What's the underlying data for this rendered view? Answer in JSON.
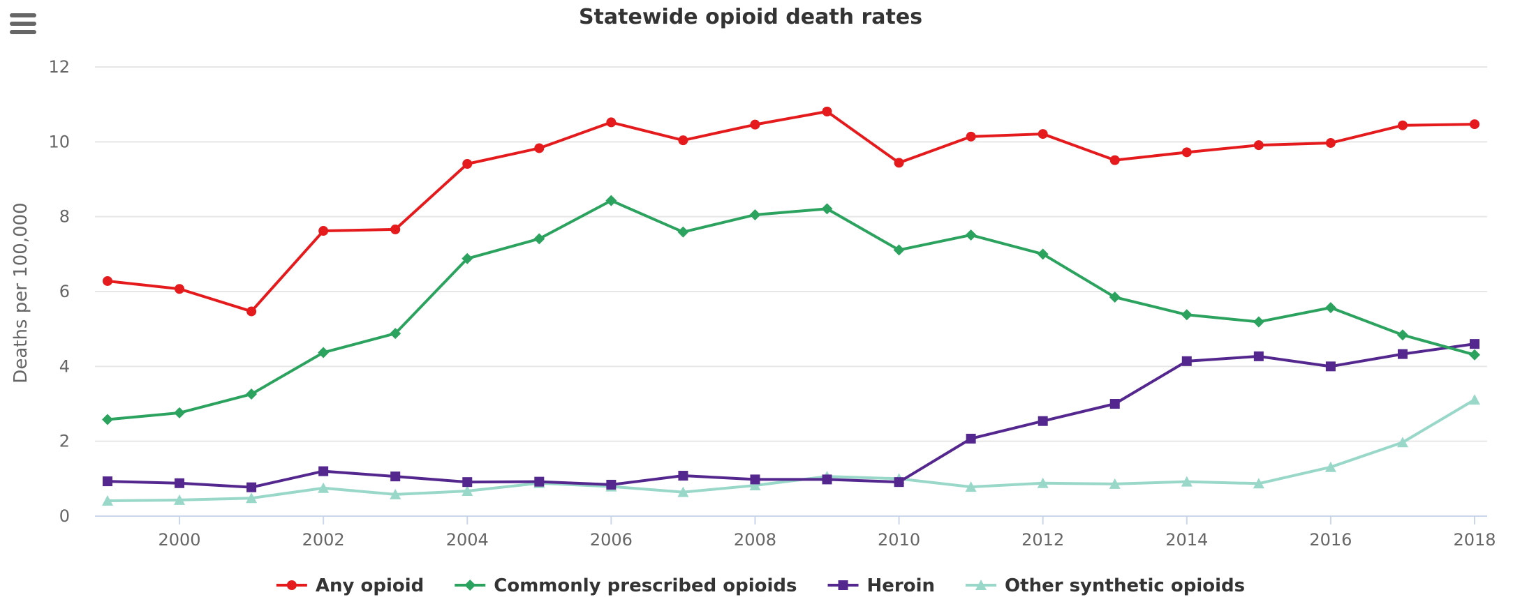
{
  "chart_data": {
    "type": "line",
    "title": "Statewide opioid death rates",
    "xlabel": "",
    "ylabel": "Deaths per 100,000",
    "x": [
      1999,
      2000,
      2001,
      2002,
      2003,
      2004,
      2005,
      2006,
      2007,
      2008,
      2009,
      2010,
      2011,
      2012,
      2013,
      2014,
      2015,
      2016,
      2017,
      2018
    ],
    "xlim": [
      1999,
      2018
    ],
    "xticks": [
      "2000",
      "2002",
      "2004",
      "2006",
      "2008",
      "2010",
      "2012",
      "2014",
      "2016",
      "2018"
    ],
    "ylim": [
      0,
      12
    ],
    "yticks": [
      "0",
      "2",
      "4",
      "6",
      "8",
      "10",
      "12"
    ],
    "grid": "horizontal",
    "legend_position": "bottom-center",
    "series": [
      {
        "name": "Any opioid",
        "color": "#e41a1c",
        "marker": "circle",
        "values": [
          6.28,
          6.07,
          5.47,
          7.62,
          7.66,
          9.41,
          9.83,
          10.52,
          10.04,
          10.46,
          10.81,
          9.44,
          10.14,
          10.21,
          9.51,
          9.72,
          9.91,
          9.97,
          10.44,
          10.47
        ]
      },
      {
        "name": "Commonly prescribed opioids",
        "color": "#2ca25f",
        "marker": "diamond",
        "values": [
          2.58,
          2.76,
          3.26,
          4.37,
          4.88,
          6.88,
          7.41,
          8.43,
          7.59,
          8.05,
          8.21,
          7.11,
          7.51,
          7.0,
          5.85,
          5.38,
          5.19,
          5.57,
          4.84,
          4.31
        ]
      },
      {
        "name": "Heroin",
        "color": "#54278f",
        "marker": "square",
        "values": [
          0.93,
          0.88,
          0.77,
          1.2,
          1.06,
          0.91,
          0.92,
          0.84,
          1.08,
          0.98,
          0.98,
          0.91,
          2.07,
          2.54,
          3.0,
          4.14,
          4.27,
          4.0,
          4.33,
          4.6
        ]
      },
      {
        "name": "Other synthetic opioids",
        "color": "#99d8c9",
        "marker": "triangle",
        "values": [
          0.41,
          0.43,
          0.48,
          0.75,
          0.58,
          0.67,
          0.88,
          0.79,
          0.64,
          0.82,
          1.06,
          1.0,
          0.78,
          0.88,
          0.86,
          0.92,
          0.87,
          1.31,
          1.97,
          3.11
        ]
      }
    ]
  },
  "icons": {
    "menu": "hamburger-menu-icon"
  },
  "colors": {
    "grid": "#e6e6e6",
    "axis_line": "#ccd6eb",
    "text": "#333333",
    "label": "#666666",
    "menu_icon": "#666666"
  }
}
